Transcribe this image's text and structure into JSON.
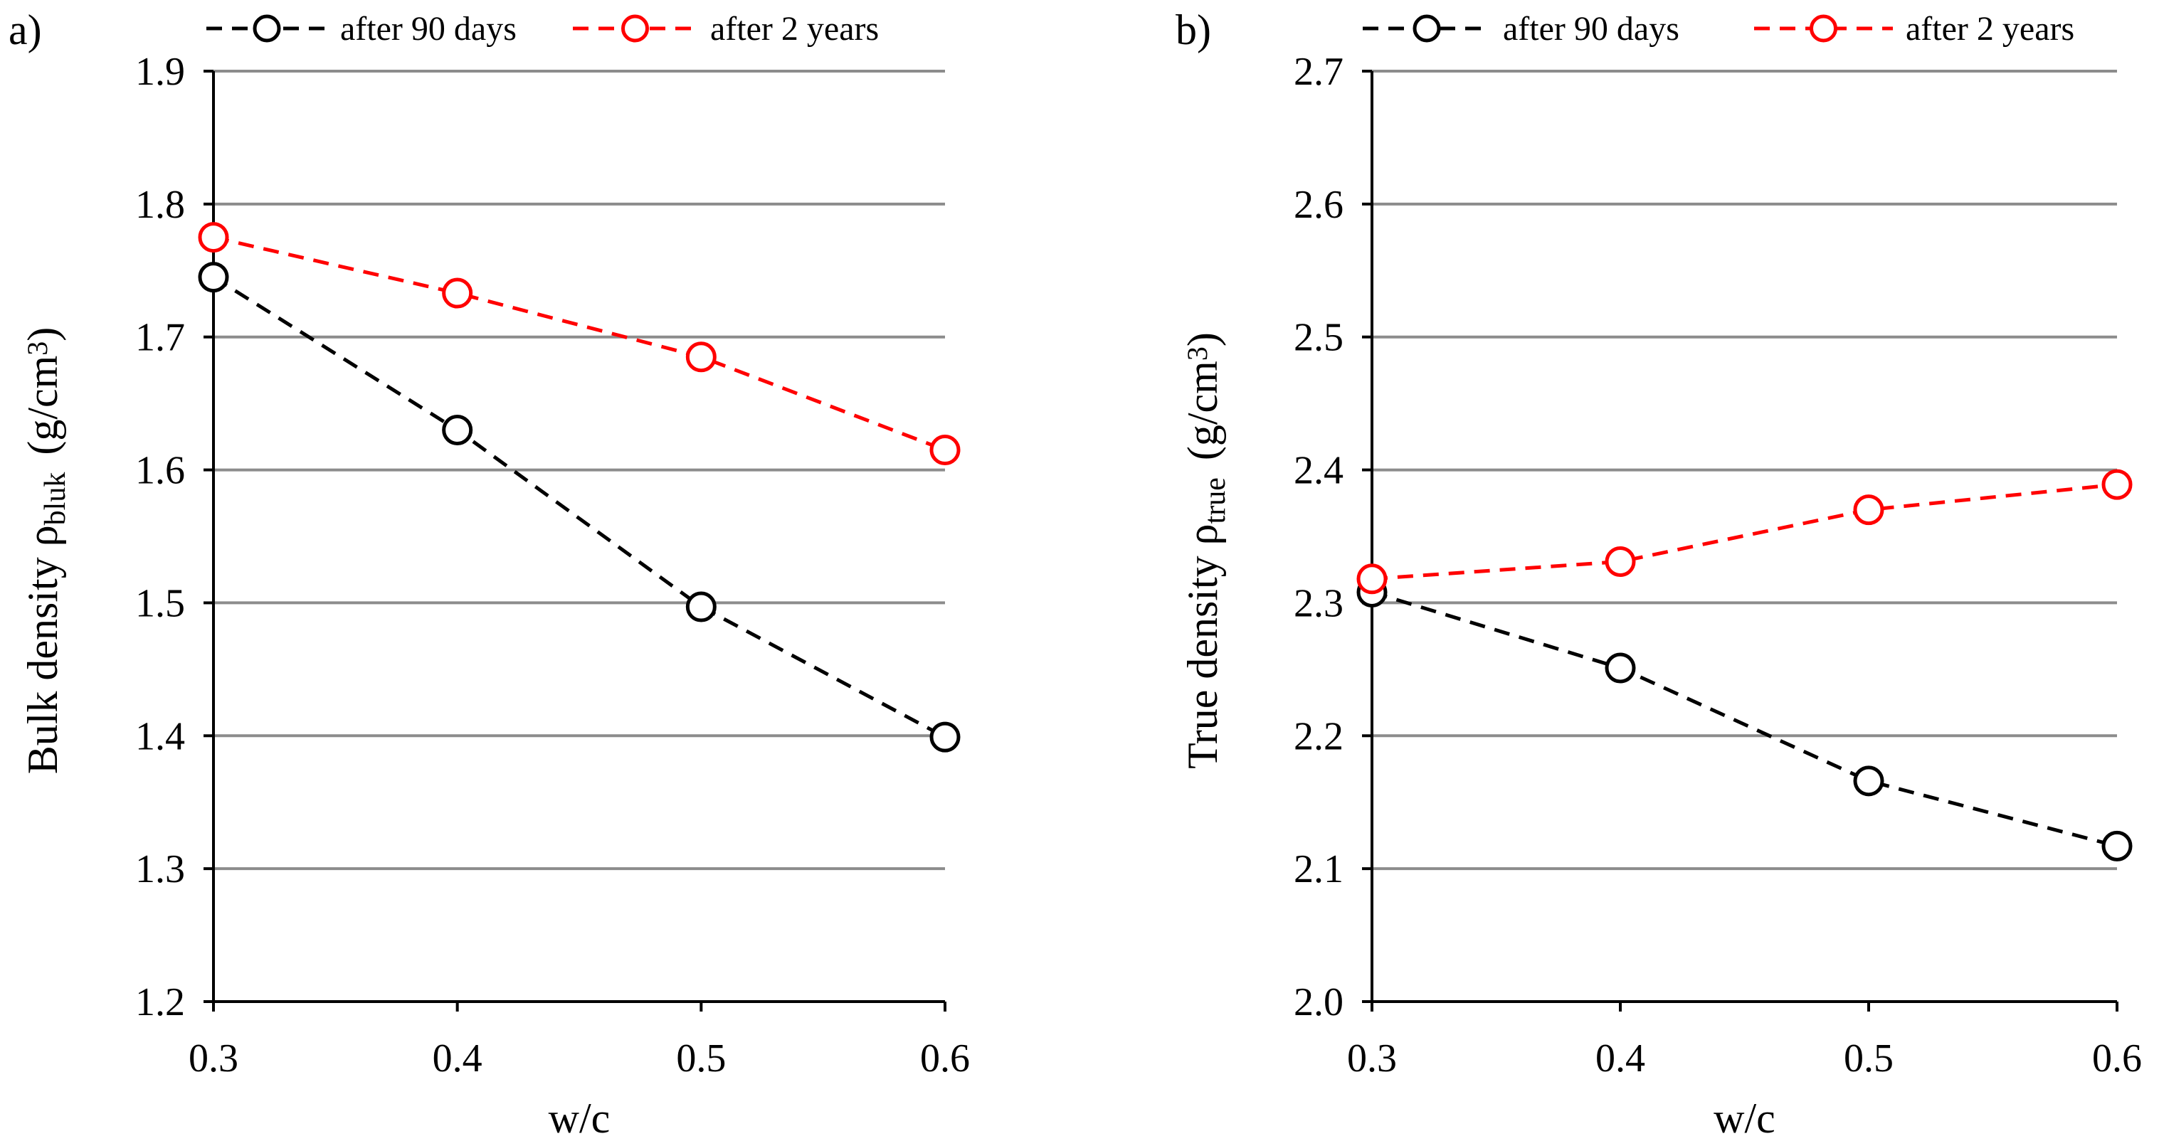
{
  "chart_data": [
    {
      "type": "line",
      "panel_label": "a)",
      "xlabel": "w/c",
      "ylabel": {
        "main": "Bulk density ρ",
        "subscript": "bluk",
        "units_prefix": "(g/cm",
        "units_sup": "3",
        "units_suffix": ")"
      },
      "x": [
        0.3,
        0.4,
        0.5,
        0.6
      ],
      "x_tick_labels": [
        "0.3",
        "0.4",
        "0.5",
        "0.6"
      ],
      "y_ticks": [
        1.2,
        1.3,
        1.4,
        1.5,
        1.6,
        1.7,
        1.8,
        1.9
      ],
      "y_tick_labels": [
        "1.2",
        "1.3",
        "1.4",
        "1.5",
        "1.6",
        "1.7",
        "1.8",
        "1.9"
      ],
      "ylim": [
        1.2,
        1.9
      ],
      "grid": true,
      "legend_position": "top",
      "series": [
        {
          "name": "after 90 days",
          "color": "#000000",
          "values": [
            1.745,
            1.63,
            1.497,
            1.399
          ]
        },
        {
          "name": "after 2 years",
          "color": "#ff0000",
          "values": [
            1.775,
            1.733,
            1.685,
            1.615
          ]
        }
      ]
    },
    {
      "type": "line",
      "panel_label": "b)",
      "xlabel": "w/c",
      "ylabel": {
        "main": "True density  ρ",
        "subscript": "true",
        "units_prefix": "(g/cm",
        "units_sup": "3",
        "units_suffix": ")"
      },
      "x": [
        0.3,
        0.4,
        0.5,
        0.6
      ],
      "x_tick_labels": [
        "0.3",
        "0.4",
        "0.5",
        "0.6"
      ],
      "y_ticks": [
        2.0,
        2.1,
        2.2,
        2.3,
        2.4,
        2.5,
        2.6,
        2.7
      ],
      "y_tick_labels": [
        "2.0",
        "2.1",
        "2.2",
        "2.3",
        "2.4",
        "2.5",
        "2.6",
        "2.7"
      ],
      "ylim": [
        2.0,
        2.7
      ],
      "grid": true,
      "legend_position": "top",
      "series": [
        {
          "name": "after 90 days",
          "color": "#000000",
          "values": [
            2.308,
            2.251,
            2.166,
            2.117
          ]
        },
        {
          "name": "after 2 years",
          "color": "#ff0000",
          "values": [
            2.318,
            2.331,
            2.37,
            2.389
          ]
        }
      ]
    }
  ]
}
